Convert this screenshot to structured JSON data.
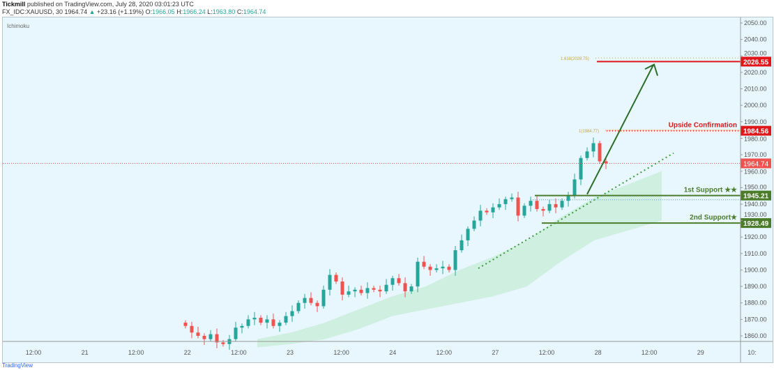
{
  "header": {
    "publisher": "Tickmill",
    "published": "published on TradingView.com, July 28, 2020 03:01:23 UTC",
    "symbol": "FX_IDC:XAUUSD, 30",
    "last": "1964.74",
    "change": "+23.16 (+1.19%)",
    "o_label": "O:",
    "o": "1966.05",
    "h_label": "H:",
    "h": "1966.24",
    "l_label": "L:",
    "l": "1963.80",
    "c_label": "C:",
    "c": "1964.74"
  },
  "indicator": "Ichimoku",
  "footer": "TradingView",
  "colors": {
    "bg": "#e8f7fd",
    "up": "#26a69a",
    "down": "#ef5350",
    "support": "#4a7c2a",
    "resistance": "#e0161b",
    "fib": "#c8a53a",
    "cloud": "#c8ecd8"
  },
  "chart_data": {
    "type": "candlestick",
    "ylim": [
      1853,
      2053
    ],
    "y_ticks": [
      1860,
      1870,
      1880,
      1890,
      1900,
      1910,
      1920,
      1930,
      1940,
      1950,
      1960,
      1970,
      1980,
      1990,
      2000,
      2010,
      2020,
      2030,
      2040,
      2050
    ],
    "x_ticks": [
      "12:00",
      "21",
      "12:00",
      "22",
      "12:00",
      "23",
      "12:00",
      "24",
      "12:00",
      "27",
      "12:00",
      "28",
      "12:00",
      "29",
      "10:"
    ],
    "closes": [
      1866,
      1862,
      1860,
      1858,
      1861,
      1856,
      1855,
      1858,
      1865,
      1866,
      1870,
      1871,
      1868,
      1870,
      1866,
      1868,
      1872,
      1875,
      1880,
      1883,
      1880,
      1878,
      1888,
      1897,
      1893,
      1885,
      1887,
      1888,
      1886,
      1889,
      1888,
      1887,
      1891,
      1895,
      1892,
      1887,
      1890,
      1905,
      1902,
      1900,
      1901,
      1902,
      1900,
      1912,
      1918,
      1925,
      1930,
      1936,
      1935,
      1938,
      1940,
      1943,
      1944,
      1933,
      1939,
      1942,
      1937,
      1936,
      1940,
      1938,
      1942,
      1945,
      1955,
      1968,
      1972,
      1977,
      1966,
      1964.74
    ],
    "cloud_top": [
      1858,
      1862,
      1868,
      1876,
      1884,
      1890,
      1900,
      1908,
      1918,
      1932,
      1944,
      1952,
      1960
    ],
    "cloud_bottom": [
      1853,
      1855,
      1858,
      1864,
      1872,
      1876,
      1880,
      1884,
      1890,
      1905,
      1918,
      1924,
      1930
    ],
    "levels": [
      {
        "label": "Upside Confirmation",
        "value": "1984.56",
        "kind": "resistance"
      },
      {
        "label": "",
        "value": "2026.55",
        "kind": "resistance"
      },
      {
        "label": "1st Support ★★",
        "value": "1945.21",
        "kind": "support"
      },
      {
        "label": "2nd Support★",
        "value": "1928.49",
        "kind": "support"
      }
    ],
    "fib": [
      {
        "label": "1.618(2028.75)",
        "value": 2028.75
      },
      {
        "label": "1(1984.77)",
        "value": 1984.77
      }
    ],
    "current_price": "1964.74"
  }
}
